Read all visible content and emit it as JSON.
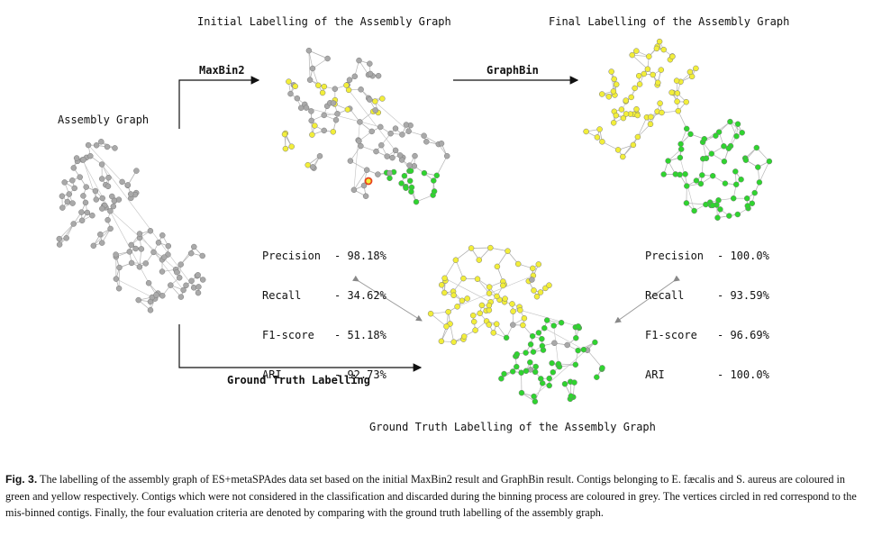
{
  "titles": {
    "initial": "Initial Labelling of the Assembly Graph",
    "final": "Final Labelling of the Assembly Graph",
    "ground_truth": "Ground Truth Labelling of the Assembly Graph",
    "assembly": "Assembly Graph"
  },
  "arrows": {
    "maxbin": "MaxBin2",
    "graphbin": "GraphBin",
    "ground_truth": "Ground Truth Labelling"
  },
  "metrics_initial": [
    {
      "name": "Precision",
      "value": "- 98.18%"
    },
    {
      "name": "Recall",
      "value": "- 34.62%"
    },
    {
      "name": "F1-score",
      "value": "- 51.18%"
    },
    {
      "name": "ARI",
      "value": "- 92.73%"
    }
  ],
  "metrics_final": [
    {
      "name": "Precision",
      "value": "- 100.0%"
    },
    {
      "name": "Recall",
      "value": "- 93.59%"
    },
    {
      "name": "F1-score",
      "value": "- 96.69%"
    },
    {
      "name": "ARI",
      "value": "- 100.0%"
    }
  ],
  "caption": {
    "label": "Fig. 3.",
    "text": " The labelling of the assembly graph of ES+metaSPAdes data set based on the initial MaxBin2 result and GraphBin result. Contigs belonging to E. fæcalis and S. aureus are coloured in green and yellow respectively. Contigs which were not considered in the classification and discarded during the binning process are coloured in grey. The vertices circled in red correspond to the mis-binned contigs. Finally, the four evaluation criteria are denoted by comparing with the ground truth labelling of the assembly graph."
  },
  "colors": {
    "yellow": "#f2ee3a",
    "green": "#2fd42f",
    "grey": "#a9a9a9",
    "mis_binned_outline": "#e8431e"
  }
}
